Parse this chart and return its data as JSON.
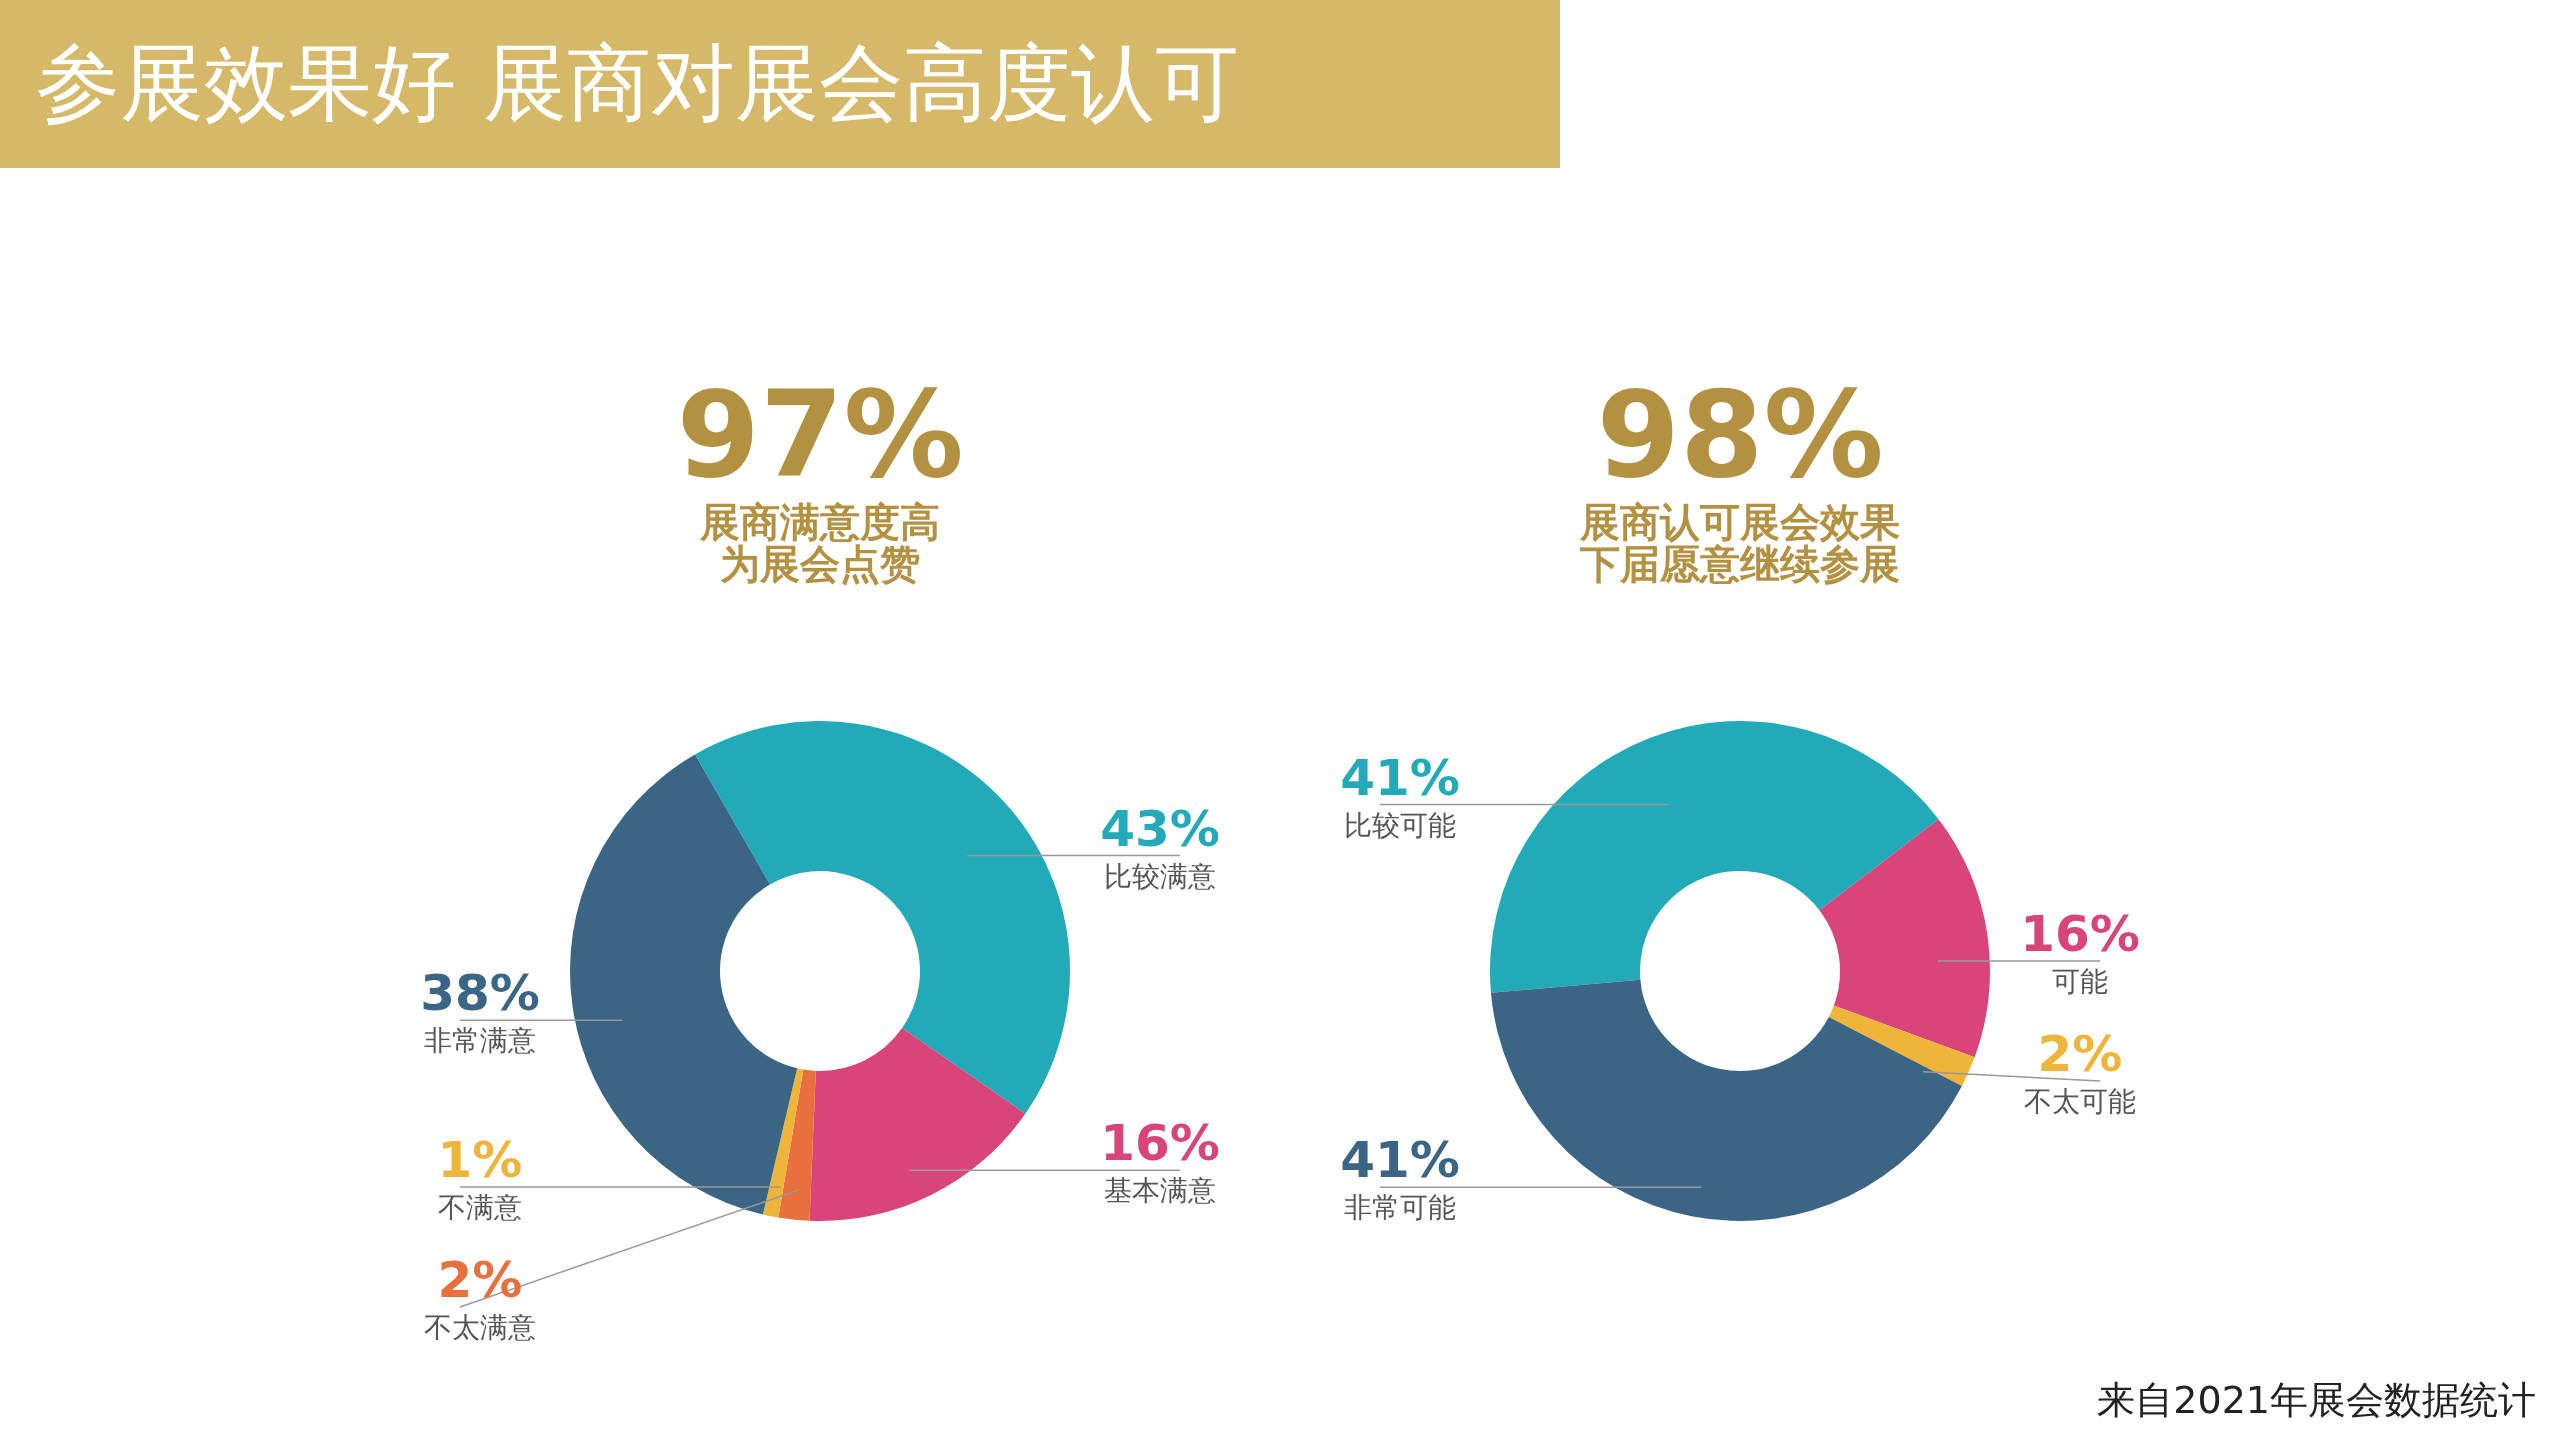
{
  "chart_data": [
    {
      "type": "donut",
      "title": "97%",
      "subtitle": "展商满意度高为展会点赞",
      "categories": [
        "比较满意",
        "基本满意",
        "不太满意",
        "不满意",
        "非常满意"
      ],
      "values": [
        43,
        16,
        2,
        1,
        38
      ],
      "colors": [
        "#22aab8",
        "#d9447a",
        "#e8703c",
        "#efb43a",
        "#3b6585"
      ],
      "value_labels": [
        "43%",
        "16%",
        "2%",
        "1%",
        "38%"
      ],
      "annotations": [
        "参展效果好  展商对展会高度认可"
      ]
    },
    {
      "type": "donut",
      "title": "98%",
      "subtitle": "展商认可展会效果下届愿意继续参展",
      "categories": [
        "比较可能",
        "可能",
        "不太可能",
        "非常可能"
      ],
      "values": [
        41,
        16,
        2,
        41
      ],
      "colors": [
        "#22aab8",
        "#d9447a",
        "#efb43a",
        "#3b6585"
      ],
      "value_labels": [
        "41%",
        "16%",
        "2%",
        "41%"
      ],
      "annotations": [
        "来自2021年展会数据统计"
      ]
    }
  ]
}
